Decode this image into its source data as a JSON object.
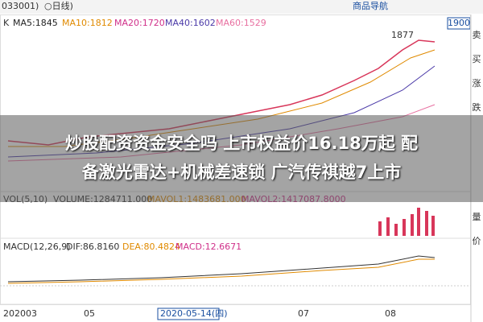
{
  "header": {
    "code": "033001)",
    "period": "○日线)",
    "nav": "商品导航",
    "price_box": "1900"
  },
  "main_panel": {
    "k": "K",
    "ma": [
      "MA5:1845",
      "MA10:1812",
      "MA20:1720",
      "MA40:1602",
      "MA60:1529"
    ],
    "high_label": "1877"
  },
  "volume_panel": {
    "labels": [
      "VOL(5,10)",
      "VOLUME:1284711.000",
      "MAVOL1:1483681.000",
      "MAVOL2:1417087.8000"
    ]
  },
  "macd_panel": {
    "labels": [
      "MACD(12,26,9)",
      "DIF:86.8160",
      "DEA:80.4824",
      "MACD:12.6671"
    ]
  },
  "x_axis": [
    "202003",
    "05",
    "2020-05-14(四)",
    "07",
    "08"
  ],
  "side_panel": [
    "卖",
    "买",
    "涨",
    "跌",
    "量",
    "价"
  ],
  "headline": [
    "炒股配资资金安全吗 上市权益价16.18万起 配",
    "备激光雷达+机械差速锁 广汽传祺越7上市"
  ]
}
